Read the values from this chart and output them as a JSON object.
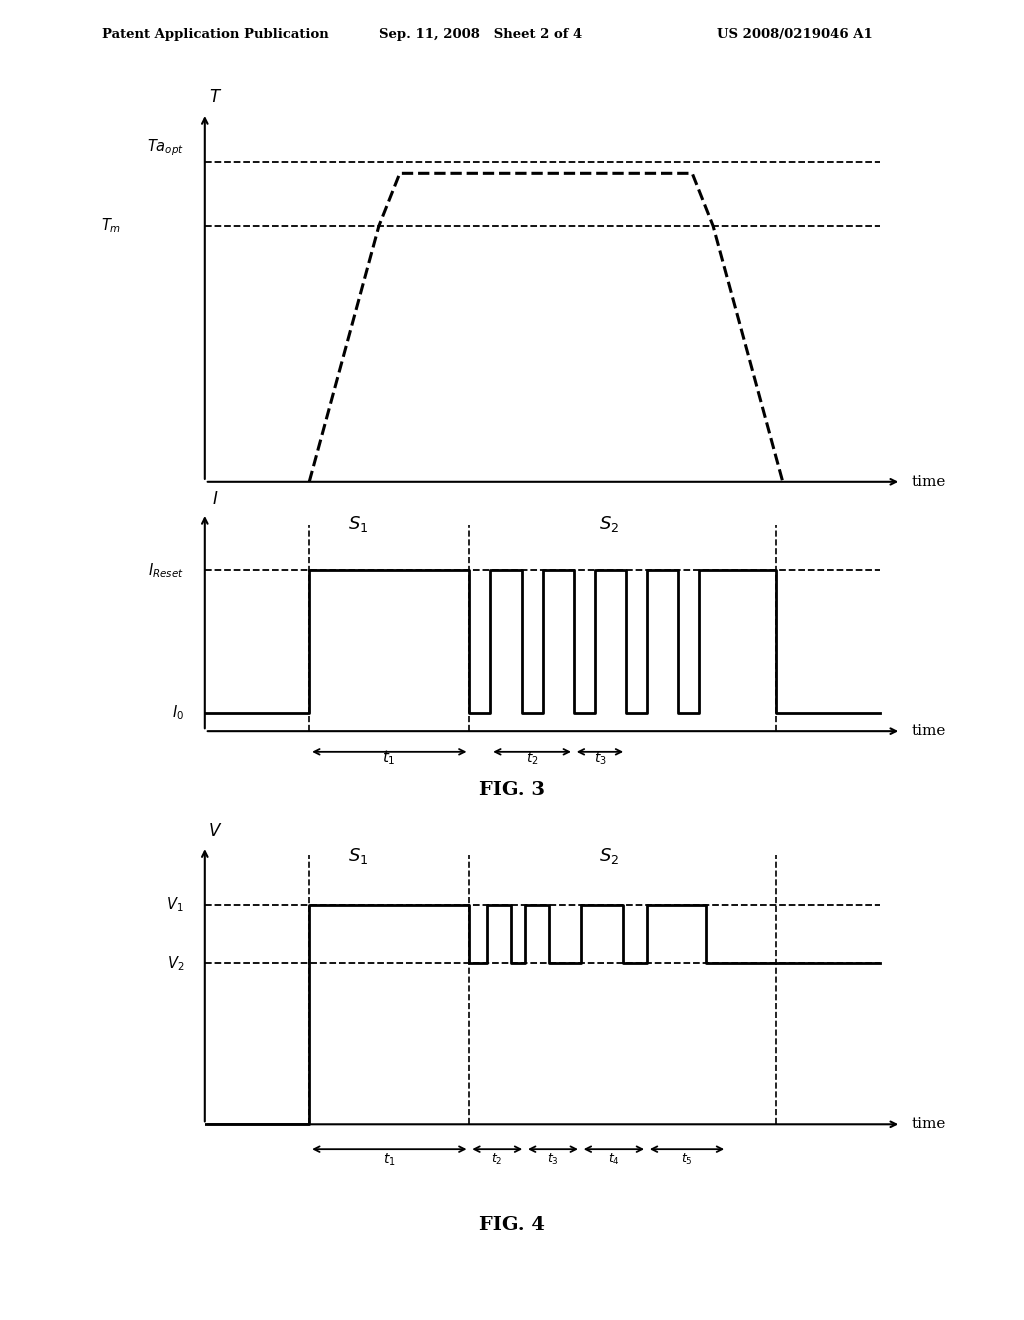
{
  "header_left": "Patent Application Publication",
  "header_mid": "Sep. 11, 2008   Sheet 2 of 4",
  "header_right": "US 2008/0219046 A1",
  "fig3_label": "FIG. 3",
  "fig4_label": "FIG. 4",
  "bg_color": "#ffffff",
  "line_color": "#000000"
}
